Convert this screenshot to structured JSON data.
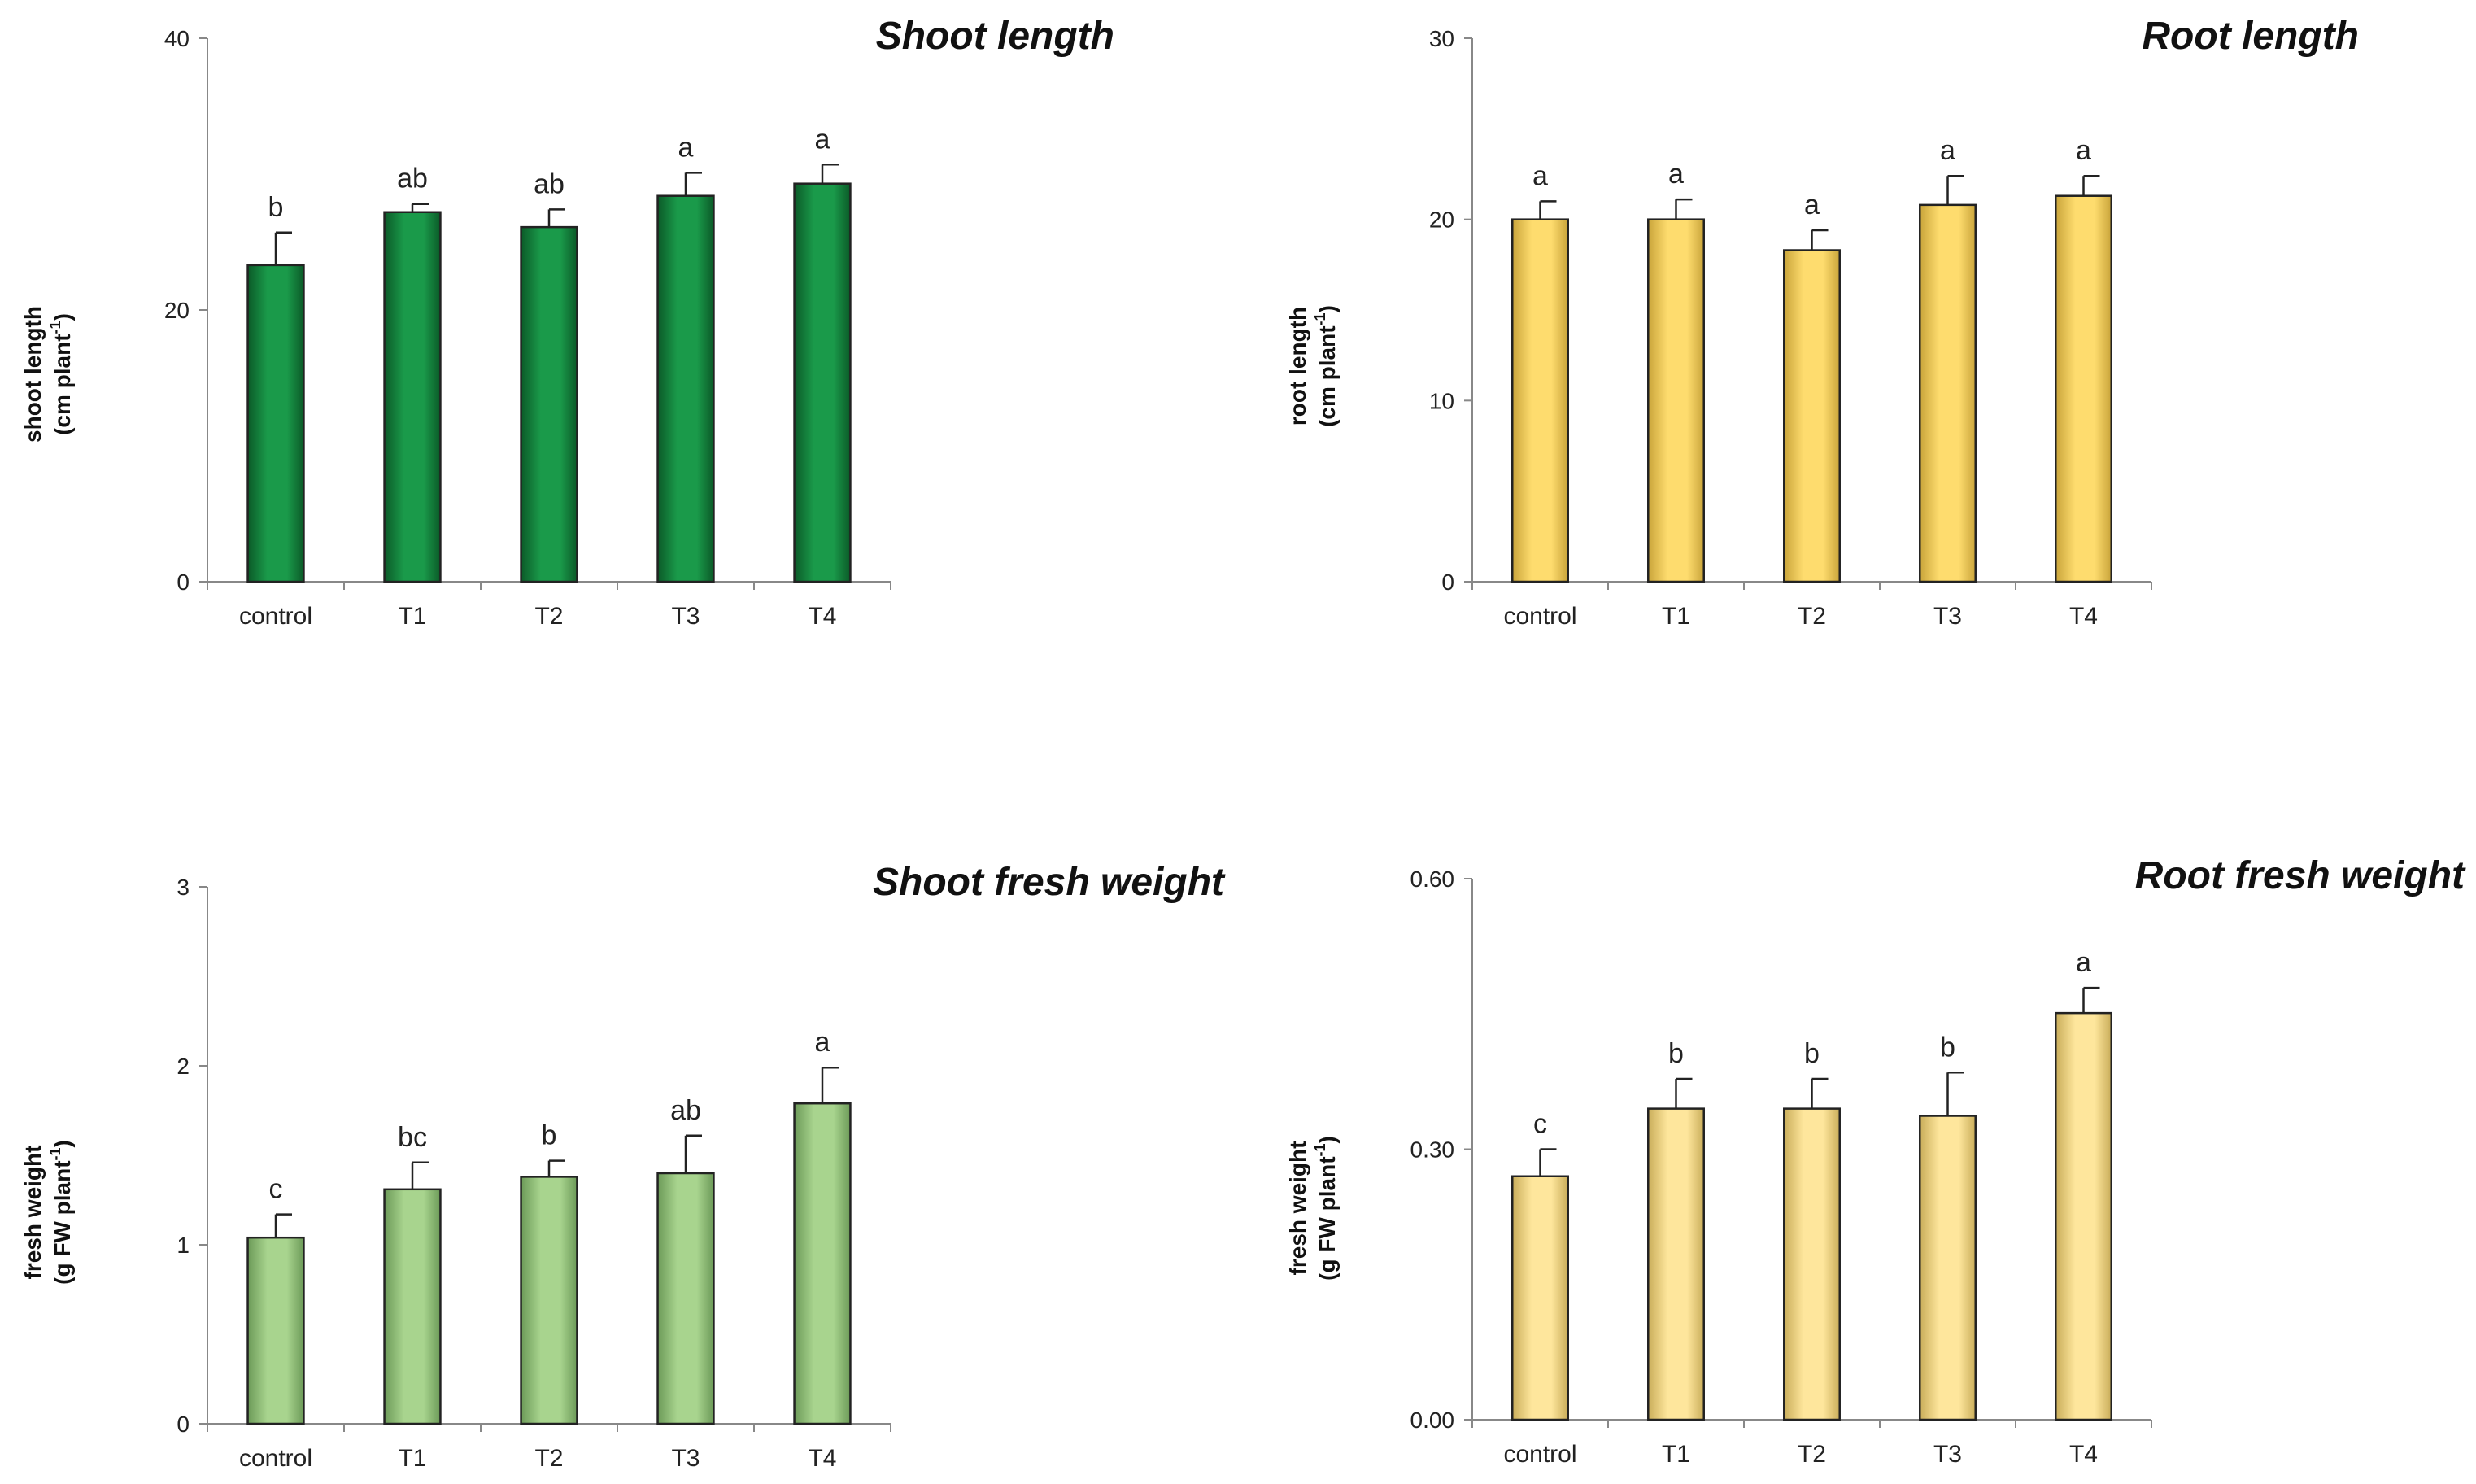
{
  "chart_data": [
    {
      "type": "bar",
      "title": "Shoot length",
      "ylabel": "shoot length",
      "yunit": "(cm plant",
      "yunit_sup": "-1",
      "yunit_close": ")",
      "categories": [
        "control",
        "T1",
        "T2",
        "T3",
        "T4"
      ],
      "values": [
        23.3,
        27.2,
        26.1,
        28.4,
        29.3
      ],
      "errors": [
        2.4,
        0.6,
        1.3,
        1.7,
        1.4
      ],
      "letters": [
        "b",
        "ab",
        "ab",
        "a",
        "a"
      ],
      "ylim": [
        0,
        40
      ],
      "yticks": [
        0,
        20,
        40
      ],
      "ytick_labels": [
        "0",
        "20",
        "40"
      ],
      "color": "#1a9a4a",
      "color_dark": "#0b5a28"
    },
    {
      "type": "bar",
      "title": "Root length",
      "ylabel": "root  length",
      "yunit": "(cm plant",
      "yunit_sup": "-1",
      "yunit_close": ")",
      "categories": [
        "control",
        "T1",
        "T2",
        "T3",
        "T4"
      ],
      "values": [
        20.0,
        20.0,
        18.3,
        20.8,
        21.3
      ],
      "errors": [
        1.0,
        1.1,
        1.1,
        1.6,
        1.1
      ],
      "letters": [
        "a",
        "a",
        "a",
        "a",
        "a"
      ],
      "ylim": [
        0,
        30
      ],
      "yticks": [
        0,
        10,
        20,
        30
      ],
      "ytick_labels": [
        "0",
        "10",
        "20",
        "30"
      ],
      "color": "#fedc6e",
      "color_dark": "#c9a43a"
    },
    {
      "type": "bar",
      "title": "Shoot fresh weight",
      "ylabel": "fresh weight",
      "yunit": "(g FW plant",
      "yunit_sup": "-1",
      "yunit_close": ")",
      "categories": [
        "control",
        "T1",
        "T2",
        "T3",
        "T4"
      ],
      "values": [
        1.04,
        1.31,
        1.38,
        1.4,
        1.79
      ],
      "errors": [
        0.13,
        0.15,
        0.09,
        0.21,
        0.2
      ],
      "letters": [
        "c",
        "bc",
        "b",
        "ab",
        "a"
      ],
      "ylim": [
        0,
        3
      ],
      "yticks": [
        0,
        1,
        2,
        3
      ],
      "ytick_labels": [
        "0",
        "1",
        "2",
        "3"
      ],
      "color": "#a8d48e",
      "color_dark": "#6c9a58"
    },
    {
      "type": "bar",
      "title": "Root fresh weight",
      "ylabel": "fresh weight",
      "yunit": "(g FW plant",
      "yunit_sup": "-1",
      "yunit_close": ")",
      "categories": [
        "control",
        "T1",
        "T2",
        "T3",
        "T4"
      ],
      "values": [
        0.27,
        0.345,
        0.345,
        0.337,
        0.451
      ],
      "errors": [
        0.03,
        0.033,
        0.033,
        0.048,
        0.028
      ],
      "letters": [
        "c",
        "b",
        "b",
        "b",
        "a"
      ],
      "ylim": [
        0,
        0.6
      ],
      "yticks": [
        0,
        0.3,
        0.6
      ],
      "ytick_labels": [
        "0.00",
        "0.30",
        "0.60"
      ],
      "color": "#fee69c",
      "color_dark": "#c9ad5a"
    }
  ]
}
